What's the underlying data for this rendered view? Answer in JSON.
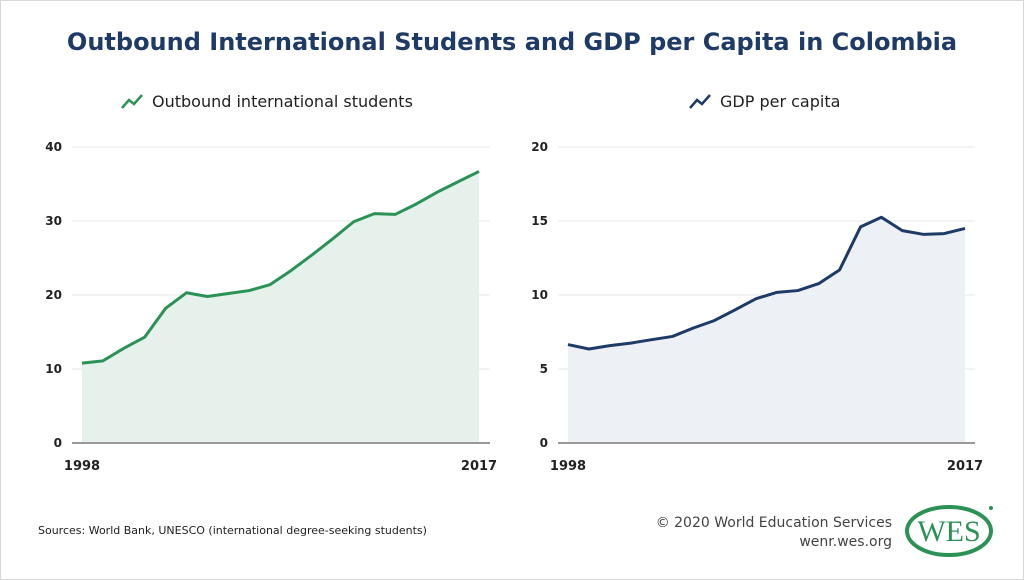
{
  "title": "Outbound International Students and GDP per Capita in Colombia",
  "chart_data": [
    {
      "type": "area",
      "legend": "Outbound international students",
      "color": "#2a9254",
      "fill": "#e5f1ea",
      "x_labels": [
        "1998",
        "2017"
      ],
      "x_range": [
        1998,
        2017
      ],
      "ylim": [
        0,
        40
      ],
      "yticks": [
        0,
        10,
        20,
        30,
        40
      ],
      "grid": true,
      "values": [
        10.8,
        11.1,
        12.8,
        14.3,
        18.2,
        20.3,
        19.8,
        20.2,
        20.6,
        21.4,
        23.3,
        25.4,
        27.6,
        29.9,
        31.0,
        30.9,
        32.3,
        33.9,
        35.3,
        36.7
      ]
    },
    {
      "type": "area",
      "legend": "GDP per capita",
      "color": "#1e3a66",
      "fill": "#edf0f4",
      "x_labels": [
        "1998",
        "2017"
      ],
      "x_range": [
        1998,
        2017
      ],
      "ylim": [
        0,
        20
      ],
      "yticks": [
        0,
        5,
        10,
        15,
        20
      ],
      "grid": true,
      "values": [
        6.65,
        6.35,
        6.58,
        6.75,
        6.98,
        7.2,
        7.77,
        8.27,
        9.0,
        9.75,
        10.18,
        10.3,
        10.77,
        11.7,
        14.6,
        15.25,
        14.35,
        14.1,
        14.15,
        14.5
      ]
    }
  ],
  "footer": {
    "source": "Sources: World Bank, UNESCO (international degree-seeking students)",
    "copyright": "© 2020 World Education Services",
    "url": "wenr.wes.org",
    "logo_text": "WES"
  }
}
